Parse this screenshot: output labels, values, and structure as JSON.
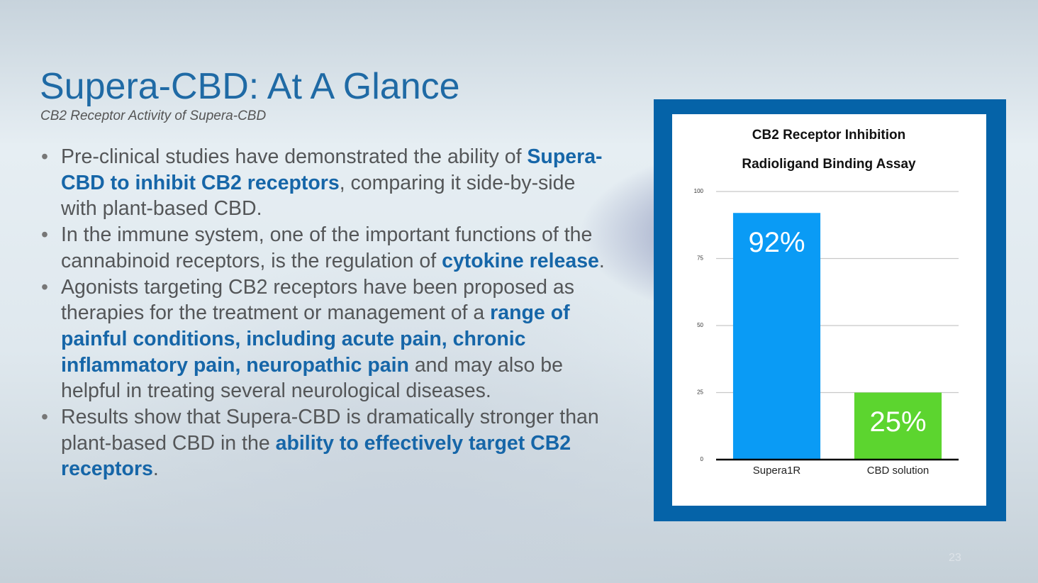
{
  "header": {
    "title": "Supera-CBD: At A Glance",
    "subtitle": "CB2 Receptor Activity of Supera-CBD"
  },
  "bullets": [
    {
      "runs": [
        {
          "text": "Pre-clinical studies have demonstrated the ability of ",
          "bold": false
        },
        {
          "text": "Supera-CBD to inhibit CB2 receptors",
          "bold": true
        },
        {
          "text": ", comparing it side-by-side with plant-based CBD.",
          "bold": false
        }
      ]
    },
    {
      "runs": [
        {
          "text": "In the immune system, one of the important functions of the cannabinoid receptors, is the regulation of ",
          "bold": false
        },
        {
          "text": "cytokine release",
          "bold": true
        },
        {
          "text": ".",
          "bold": false
        }
      ]
    },
    {
      "runs": [
        {
          "text": "Agonists targeting CB2 receptors have been proposed as therapies for the treatment or management of a ",
          "bold": false
        },
        {
          "text": "range of painful conditions, including acute pain, chronic inflammatory pain, neuropathic pain",
          "bold": true
        },
        {
          "text": " and may also be helpful in treating several neurological diseases.",
          "bold": false
        }
      ]
    },
    {
      "runs": [
        {
          "text": "Results show that Supera-CBD is dramatically stronger than plant-based CBD in the ",
          "bold": false
        },
        {
          "text": "ability to effectively target CB2 receptors",
          "bold": true
        },
        {
          "text": ".",
          "bold": false
        }
      ]
    }
  ],
  "chart_data": {
    "type": "bar",
    "title": "CB2 Receptor Inhibition",
    "subtitle": "Radioligand Binding Assay",
    "categories": [
      "Supera1R",
      "CBD solution"
    ],
    "values": [
      92,
      25
    ],
    "value_labels": [
      "92%",
      "25%"
    ],
    "colors": [
      "#0a9bf5",
      "#5cd52f"
    ],
    "ylim": [
      0,
      100
    ],
    "yticks": [
      0,
      25,
      50,
      75,
      100
    ],
    "grid": true
  },
  "footer": {
    "page_number": "23"
  }
}
